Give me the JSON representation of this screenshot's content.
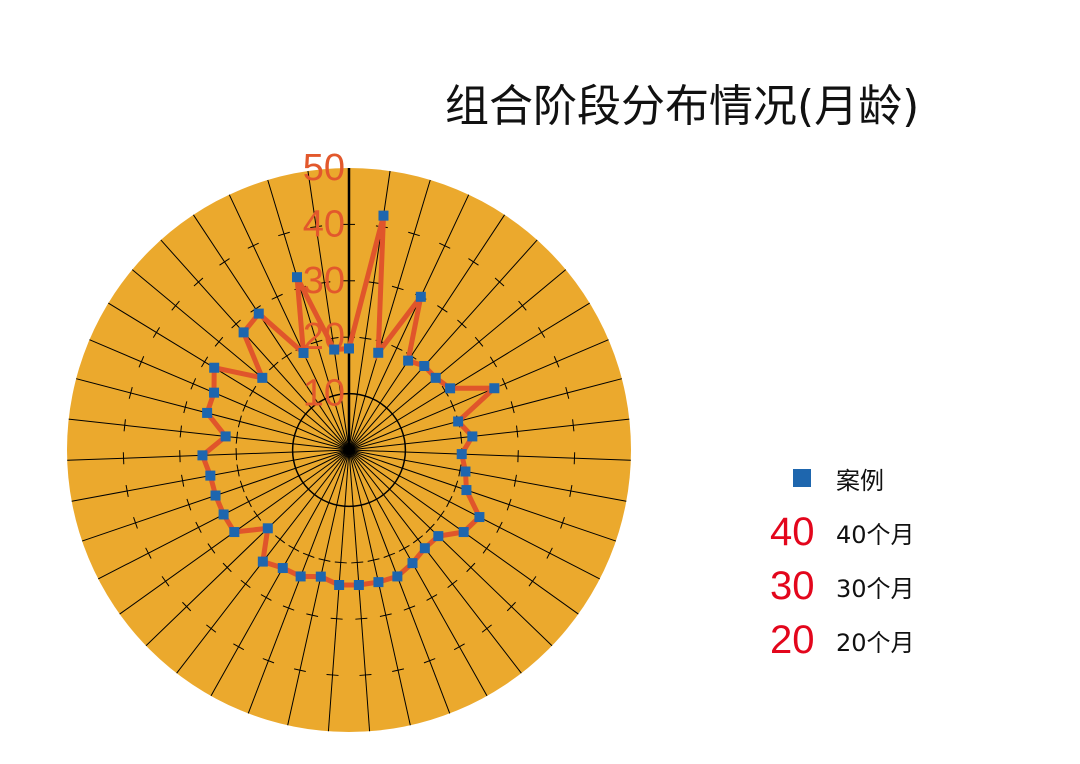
{
  "chart_data": {
    "type": "line",
    "coordinate_system": "polar",
    "title": "组合阶段分布情况(月龄)",
    "rlim": [
      0,
      50
    ],
    "rticks": [
      10,
      20,
      30,
      40,
      50
    ],
    "grid_circles": [
      10
    ],
    "ring_ticks": [
      20,
      30,
      40
    ],
    "series": [
      {
        "name": "案例",
        "values": [
          18,
          42,
          18,
          30,
          19,
          20,
          20,
          21,
          28,
          20,
          22,
          20,
          21,
          22,
          26,
          25,
          22,
          22,
          23,
          24,
          24,
          24,
          24,
          23,
          24,
          24,
          25,
          20,
          25,
          25,
          25,
          25,
          26,
          22,
          26,
          26,
          28,
          20,
          28,
          29,
          19,
          32,
          18
        ]
      }
    ],
    "legend": {
      "position": "right",
      "series_marker": "square-marker",
      "reference_items": [
        {
          "symbol": "40",
          "label": "40个月"
        },
        {
          "symbol": "30",
          "label": "30个月"
        },
        {
          "symbol": "20",
          "label": "20个月"
        }
      ]
    }
  },
  "colors": {
    "plot_fill": "#EBA92D",
    "grid": "#000000",
    "axis_line": "#000000",
    "series_line": "#E0552B",
    "series_marker": "#1E66AE",
    "axis_label": "#E2582C",
    "legend_number": "#E3061C"
  }
}
